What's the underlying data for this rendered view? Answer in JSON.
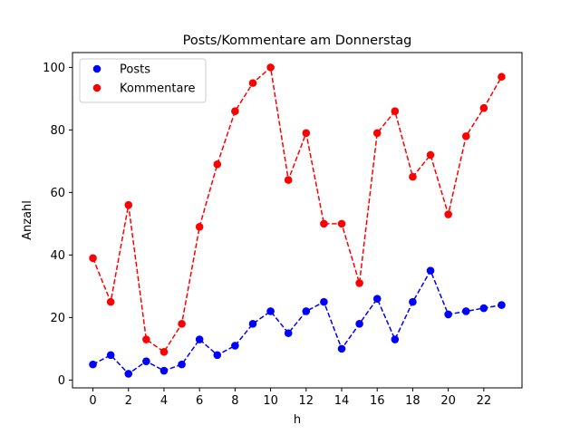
{
  "chart_data": {
    "type": "line",
    "title": "Posts/Kommentare am Donnerstag",
    "xlabel": "h",
    "ylabel": "Anzahl",
    "xlim": [
      -1.15,
      24.15
    ],
    "ylim": [
      -2.5,
      104.75
    ],
    "xticks": [
      0,
      2,
      4,
      6,
      8,
      10,
      12,
      14,
      16,
      18,
      20,
      22
    ],
    "yticks": [
      0,
      20,
      40,
      60,
      80,
      100
    ],
    "grid": false,
    "legend_position": "top-left",
    "x": [
      0,
      1,
      2,
      3,
      4,
      5,
      6,
      7,
      8,
      9,
      10,
      11,
      12,
      13,
      14,
      15,
      16,
      17,
      18,
      19,
      20,
      21,
      22,
      23
    ],
    "series": [
      {
        "name": "Posts",
        "color": "#0000ff",
        "values": [
          5,
          8,
          2,
          6,
          3,
          5,
          13,
          8,
          11,
          18,
          22,
          15,
          22,
          25,
          10,
          18,
          26,
          13,
          25,
          35,
          21,
          22,
          23,
          24
        ]
      },
      {
        "name": "Kommentare",
        "color": "#ff0000",
        "values": [
          39,
          25,
          56,
          13,
          9,
          18,
          49,
          69,
          86,
          95,
          100,
          64,
          79,
          50,
          50,
          31,
          79,
          86,
          65,
          72,
          53,
          78,
          87,
          97
        ]
      }
    ]
  }
}
